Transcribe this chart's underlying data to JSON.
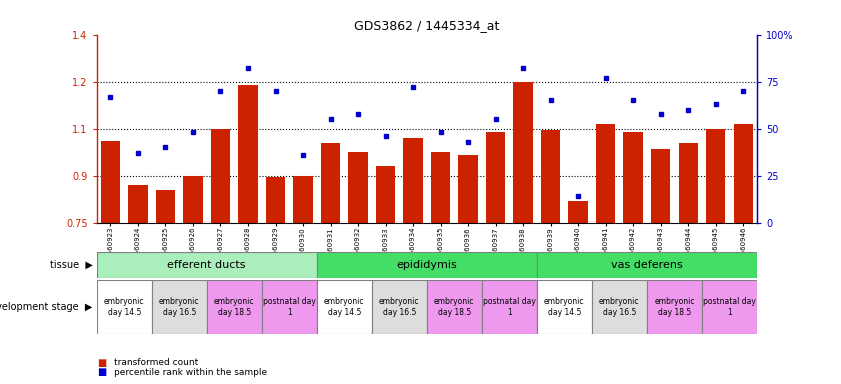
{
  "title": "GDS3862 / 1445334_at",
  "samples": [
    "GSM560923",
    "GSM560924",
    "GSM560925",
    "GSM560926",
    "GSM560927",
    "GSM560928",
    "GSM560929",
    "GSM560930",
    "GSM560931",
    "GSM560932",
    "GSM560933",
    "GSM560934",
    "GSM560935",
    "GSM560936",
    "GSM560937",
    "GSM560938",
    "GSM560939",
    "GSM560940",
    "GSM560941",
    "GSM560942",
    "GSM560943",
    "GSM560944",
    "GSM560945",
    "GSM560946"
  ],
  "transformed_count": [
    1.01,
    0.87,
    0.855,
    0.9,
    1.05,
    1.19,
    0.895,
    0.9,
    1.005,
    0.975,
    0.93,
    1.02,
    0.975,
    0.965,
    1.04,
    1.2,
    1.045,
    0.82,
    1.065,
    1.04,
    0.985,
    1.005,
    1.05,
    1.065
  ],
  "percentile_rank": [
    67,
    37,
    40,
    48,
    70,
    82,
    70,
    36,
    55,
    58,
    46,
    72,
    48,
    43,
    55,
    82,
    65,
    14,
    77,
    65,
    58,
    60,
    63,
    70
  ],
  "ylim_left": [
    0.75,
    1.35
  ],
  "ylim_right": [
    0,
    100
  ],
  "yticks_left": [
    0.75,
    0.9,
    1.05,
    1.2,
    1.35
  ],
  "yticks_right": [
    0,
    25,
    50,
    75,
    100
  ],
  "bar_color": "#cc2200",
  "dot_color": "#0000cc",
  "tissue_groups": [
    {
      "label": "efferent ducts",
      "start": 0,
      "end": 8,
      "color": "#aaeebb"
    },
    {
      "label": "epididymis",
      "start": 8,
      "end": 16,
      "color": "#44dd66"
    },
    {
      "label": "vas deferens",
      "start": 16,
      "end": 24,
      "color": "#44dd66"
    }
  ],
  "dev_stage_groups": [
    {
      "label": "embryonic\nday 14.5",
      "start": 0,
      "end": 2,
      "color": "#ffffff"
    },
    {
      "label": "embryonic\nday 16.5",
      "start": 2,
      "end": 4,
      "color": "#dddddd"
    },
    {
      "label": "embryonic\nday 18.5",
      "start": 4,
      "end": 6,
      "color": "#ee99ee"
    },
    {
      "label": "postnatal day\n1",
      "start": 6,
      "end": 8,
      "color": "#ee99ee"
    },
    {
      "label": "embryonic\nday 14.5",
      "start": 8,
      "end": 10,
      "color": "#ffffff"
    },
    {
      "label": "embryonic\nday 16.5",
      "start": 10,
      "end": 12,
      "color": "#dddddd"
    },
    {
      "label": "embryonic\nday 18.5",
      "start": 12,
      "end": 14,
      "color": "#ee99ee"
    },
    {
      "label": "postnatal day\n1",
      "start": 14,
      "end": 16,
      "color": "#ee99ee"
    },
    {
      "label": "embryonic\nday 14.5",
      "start": 16,
      "end": 18,
      "color": "#ffffff"
    },
    {
      "label": "embryonic\nday 16.5",
      "start": 18,
      "end": 20,
      "color": "#dddddd"
    },
    {
      "label": "embryonic\nday 18.5",
      "start": 20,
      "end": 22,
      "color": "#ee99ee"
    },
    {
      "label": "postnatal day\n1",
      "start": 22,
      "end": 24,
      "color": "#ee99ee"
    }
  ],
  "tissue_label": "tissue",
  "dev_label": "development stage",
  "right_axis_color": "#0000cc",
  "left_axis_color": "#cc2200",
  "dotted_lines": [
    0.9,
    1.05,
    1.2
  ],
  "legend_items": [
    {
      "label": "transformed count",
      "color": "#cc2200"
    },
    {
      "label": "percentile rank within the sample",
      "color": "#0000cc"
    }
  ]
}
